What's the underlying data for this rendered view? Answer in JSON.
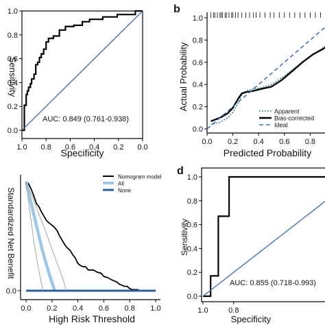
{
  "panel_letters": {
    "b": "b",
    "d": "d"
  },
  "colors": {
    "diag": "#4472b0",
    "curve": "#000000",
    "light_blue": "#9cc8e8",
    "gray": "#a6a6a6",
    "dark_blue": "#2f5e9e"
  },
  "chart_data": [
    {
      "id": "a",
      "type": "line",
      "title": "",
      "xlabel": "Specificity",
      "ylabel": "Sensitivity",
      "xlim": [
        1.0,
        0.0
      ],
      "ylim": [
        0,
        1.0
      ],
      "x_ticks": [
        "1.0",
        "0.8",
        "0.6",
        "0.4",
        "0.2",
        "0.0"
      ],
      "y_ticks": [
        "0.0",
        "0.2",
        "0.4",
        "0.6",
        "0.8",
        "1.0"
      ],
      "annotation": "AUC: 0.849 (0.761-0.938)",
      "series": [
        {
          "role": "roc",
          "color": "#000000",
          "points": [
            [
              1.0,
              0.0
            ],
            [
              0.98,
              0.0
            ],
            [
              0.98,
              0.21
            ],
            [
              0.965,
              0.21
            ],
            [
              0.965,
              0.3
            ],
            [
              0.955,
              0.3
            ],
            [
              0.955,
              0.33
            ],
            [
              0.945,
              0.33
            ],
            [
              0.945,
              0.36
            ],
            [
              0.93,
              0.36
            ],
            [
              0.93,
              0.39
            ],
            [
              0.92,
              0.39
            ],
            [
              0.92,
              0.43
            ],
            [
              0.9,
              0.43
            ],
            [
              0.9,
              0.47
            ],
            [
              0.885,
              0.47
            ],
            [
              0.885,
              0.55
            ],
            [
              0.87,
              0.55
            ],
            [
              0.87,
              0.57
            ],
            [
              0.855,
              0.57
            ],
            [
              0.855,
              0.61
            ],
            [
              0.84,
              0.61
            ],
            [
              0.84,
              0.64
            ],
            [
              0.82,
              0.64
            ],
            [
              0.82,
              0.68
            ],
            [
              0.8,
              0.68
            ],
            [
              0.8,
              0.74
            ],
            [
              0.78,
              0.74
            ],
            [
              0.78,
              0.77
            ],
            [
              0.74,
              0.77
            ],
            [
              0.74,
              0.79
            ],
            [
              0.69,
              0.79
            ],
            [
              0.69,
              0.84
            ],
            [
              0.64,
              0.84
            ],
            [
              0.64,
              0.87
            ],
            [
              0.57,
              0.87
            ],
            [
              0.57,
              0.88
            ],
            [
              0.5,
              0.88
            ],
            [
              0.5,
              0.91
            ],
            [
              0.44,
              0.91
            ],
            [
              0.44,
              0.93
            ],
            [
              0.33,
              0.93
            ],
            [
              0.33,
              0.95
            ],
            [
              0.21,
              0.95
            ],
            [
              0.21,
              0.97
            ],
            [
              0.06,
              0.97
            ],
            [
              0.06,
              1.0
            ],
            [
              0.0,
              1.0
            ]
          ]
        },
        {
          "role": "reference",
          "color": "#4472b0",
          "points": [
            [
              1.0,
              0.0
            ],
            [
              0.0,
              1.0
            ]
          ]
        }
      ]
    },
    {
      "id": "b",
      "type": "line",
      "title": "",
      "xlabel": "Predicted Probability",
      "ylabel": "Actual Probability",
      "xlim": [
        0.0,
        1.0
      ],
      "ylim": [
        0,
        1.0
      ],
      "x_ticks": [
        "0.0",
        "0.2",
        "0.4",
        "0.6",
        "0.8"
      ],
      "y_ticks": [
        "0.0",
        "0.2",
        "0.4",
        "0.6",
        "0.8",
        "1.0"
      ],
      "rug_x": [
        0.03,
        0.05,
        0.06,
        0.08,
        0.1,
        0.11,
        0.12,
        0.14,
        0.15,
        0.17,
        0.19,
        0.2,
        0.22,
        0.24,
        0.27,
        0.3,
        0.33,
        0.36,
        0.38,
        0.41,
        0.45,
        0.49,
        0.52,
        0.56,
        0.6,
        0.64,
        0.68,
        0.72,
        0.76,
        0.8,
        0.84,
        0.88,
        0.92,
        0.95
      ],
      "legend": [
        "Apparent",
        "Bias-corrected",
        "Ideal"
      ],
      "series": [
        {
          "name": "Apparent",
          "style": "dotted",
          "color": "#2e8b8b",
          "points": [
            [
              0.03,
              0.04
            ],
            [
              0.1,
              0.06
            ],
            [
              0.16,
              0.1
            ],
            [
              0.2,
              0.15
            ],
            [
              0.24,
              0.23
            ],
            [
              0.27,
              0.31
            ],
            [
              0.3,
              0.34
            ],
            [
              0.35,
              0.36
            ],
            [
              0.42,
              0.37
            ],
            [
              0.5,
              0.4
            ],
            [
              0.58,
              0.46
            ],
            [
              0.66,
              0.53
            ],
            [
              0.74,
              0.6
            ],
            [
              0.82,
              0.67
            ],
            [
              0.9,
              0.73
            ],
            [
              0.96,
              0.78
            ]
          ]
        },
        {
          "name": "Bias-corrected",
          "style": "solid",
          "color": "#000000",
          "points": [
            [
              0.03,
              0.07
            ],
            [
              0.1,
              0.1
            ],
            [
              0.16,
              0.14
            ],
            [
              0.2,
              0.19
            ],
            [
              0.24,
              0.27
            ],
            [
              0.27,
              0.32
            ],
            [
              0.3,
              0.33
            ],
            [
              0.35,
              0.34
            ],
            [
              0.42,
              0.36
            ],
            [
              0.5,
              0.38
            ],
            [
              0.58,
              0.44
            ],
            [
              0.66,
              0.52
            ],
            [
              0.74,
              0.6
            ],
            [
              0.82,
              0.67
            ],
            [
              0.9,
              0.72
            ],
            [
              0.96,
              0.77
            ]
          ]
        },
        {
          "name": "Ideal",
          "style": "dashed",
          "color": "#4472b0",
          "points": [
            [
              0.0,
              0.0
            ],
            [
              1.0,
              1.0
            ]
          ]
        }
      ]
    },
    {
      "id": "c",
      "type": "line",
      "title": "",
      "xlabel": "High Risk Threshold",
      "ylabel": "Standardized Net Benefit",
      "xlim": [
        0.0,
        1.0
      ],
      "ylim": [
        0,
        1.0
      ],
      "x_ticks": [
        "0.0",
        "0.2",
        "0.4",
        "0.6",
        "0.8",
        "1.0"
      ],
      "y_ticks": [
        "0.0"
      ],
      "legend": [
        "Nomogram model",
        "All",
        "None"
      ],
      "series": [
        {
          "name": "Nomogram model",
          "color": "#000000",
          "points": [
            [
              0.0,
              1.0
            ],
            [
              0.02,
              0.98
            ],
            [
              0.04,
              0.93
            ],
            [
              0.05,
              0.9
            ],
            [
              0.06,
              0.87
            ],
            [
              0.08,
              0.8
            ],
            [
              0.1,
              0.77
            ],
            [
              0.12,
              0.72
            ],
            [
              0.14,
              0.68
            ],
            [
              0.16,
              0.64
            ],
            [
              0.18,
              0.62
            ],
            [
              0.2,
              0.6
            ],
            [
              0.22,
              0.58
            ],
            [
              0.24,
              0.55
            ],
            [
              0.26,
              0.5
            ],
            [
              0.28,
              0.46
            ],
            [
              0.3,
              0.42
            ],
            [
              0.32,
              0.39
            ],
            [
              0.34,
              0.37
            ],
            [
              0.36,
              0.33
            ],
            [
              0.38,
              0.3
            ],
            [
              0.4,
              0.25
            ],
            [
              0.42,
              0.23
            ],
            [
              0.44,
              0.22
            ],
            [
              0.46,
              0.22
            ],
            [
              0.48,
              0.19
            ],
            [
              0.5,
              0.19
            ],
            [
              0.52,
              0.19
            ],
            [
              0.55,
              0.17
            ],
            [
              0.58,
              0.16
            ],
            [
              0.6,
              0.13
            ],
            [
              0.63,
              0.12
            ],
            [
              0.66,
              0.1
            ],
            [
              0.7,
              0.08
            ],
            [
              0.72,
              0.06
            ],
            [
              0.74,
              0.05
            ],
            [
              0.76,
              0.04
            ],
            [
              0.78,
              0.04
            ],
            [
              0.8,
              0.02
            ],
            [
              0.82,
              0.01
            ],
            [
              0.86,
              0.01
            ],
            [
              0.88,
              0.0
            ],
            [
              0.92,
              0.0
            ]
          ]
        },
        {
          "name": "All",
          "color": "#9cc8e8",
          "points": [
            [
              0.0,
              1.0
            ],
            [
              0.03,
              0.85
            ],
            [
              0.06,
              0.7
            ],
            [
              0.09,
              0.55
            ],
            [
              0.12,
              0.4
            ],
            [
              0.15,
              0.27
            ],
            [
              0.18,
              0.15
            ],
            [
              0.21,
              0.04
            ],
            [
              0.22,
              0.0
            ]
          ]
        },
        {
          "name": "None",
          "color": "#2f5e9e",
          "points": [
            [
              0.0,
              0.0
            ],
            [
              1.0,
              0.0
            ]
          ]
        },
        {
          "name": "",
          "color": "#a6a6a6",
          "points": [
            [
              0.0,
              1.0
            ],
            [
              0.03,
              0.72
            ],
            [
              0.06,
              0.46
            ],
            [
              0.09,
              0.24
            ],
            [
              0.12,
              0.06
            ],
            [
              0.13,
              0.0
            ]
          ]
        },
        {
          "name": "",
          "color": "#a6a6a6",
          "points": [
            [
              0.0,
              1.0
            ],
            [
              0.05,
              0.86
            ],
            [
              0.1,
              0.7
            ],
            [
              0.15,
              0.55
            ],
            [
              0.2,
              0.38
            ],
            [
              0.25,
              0.22
            ],
            [
              0.29,
              0.09
            ],
            [
              0.31,
              0.0
            ]
          ]
        }
      ]
    },
    {
      "id": "d",
      "type": "line",
      "title": "",
      "xlabel": "Specificity",
      "ylabel": "Sensitivity",
      "xlim": [
        1.0,
        0.0
      ],
      "ylim": [
        0,
        1.0
      ],
      "x_ticks": [
        "1.0",
        "0.8"
      ],
      "y_ticks": [
        "0.0",
        "0.2",
        "0.4",
        "0.6",
        "0.8",
        "1.0"
      ],
      "annotation": "AUC: 0.855 (0.718-0.993)",
      "series": [
        {
          "role": "roc",
          "color": "#000000",
          "points": [
            [
              1.0,
              0.0
            ],
            [
              0.95,
              0.0
            ],
            [
              0.95,
              0.17
            ],
            [
              0.9,
              0.17
            ],
            [
              0.9,
              0.67
            ],
            [
              0.83,
              0.67
            ],
            [
              0.83,
              1.0
            ],
            [
              0.0,
              1.0
            ]
          ]
        },
        {
          "role": "reference",
          "color": "#4472b0",
          "points": [
            [
              1.0,
              0.0
            ],
            [
              0.0,
              1.0
            ]
          ]
        }
      ]
    }
  ]
}
